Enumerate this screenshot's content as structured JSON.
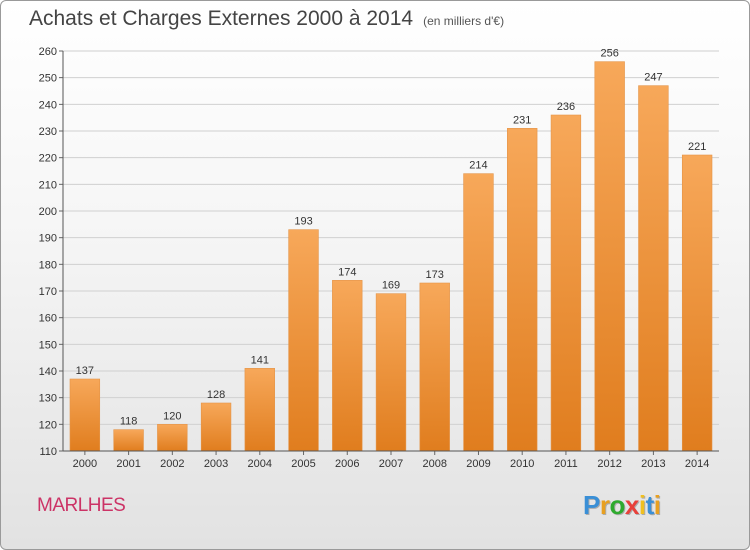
{
  "chart_data": {
    "type": "bar",
    "title": "Achats et Charges Externes 2000 à 2014",
    "subtitle": "(en milliers d'€)",
    "categories": [
      "2000",
      "2001",
      "2002",
      "2003",
      "2004",
      "2005",
      "2006",
      "2007",
      "2008",
      "2009",
      "2010",
      "2011",
      "2012",
      "2013",
      "2014"
    ],
    "values": [
      137,
      118,
      120,
      128,
      141,
      193,
      174,
      169,
      173,
      214,
      231,
      236,
      256,
      247,
      221
    ],
    "ylim": [
      110,
      260
    ],
    "yticks": [
      110,
      120,
      130,
      140,
      150,
      160,
      170,
      180,
      190,
      200,
      210,
      220,
      230,
      240,
      250,
      260
    ],
    "grid": true,
    "bar_color_top": "#f7a85a",
    "bar_color_bottom": "#e07d1e"
  },
  "footer": {
    "town": "MARLHES",
    "logo": "Proxiti",
    "logo_colors": [
      "#3a8fd6",
      "#e8a020",
      "#2eaa2e",
      "#e8403a",
      "#f0c020",
      "#3a8fd6",
      "#e8a020"
    ]
  }
}
